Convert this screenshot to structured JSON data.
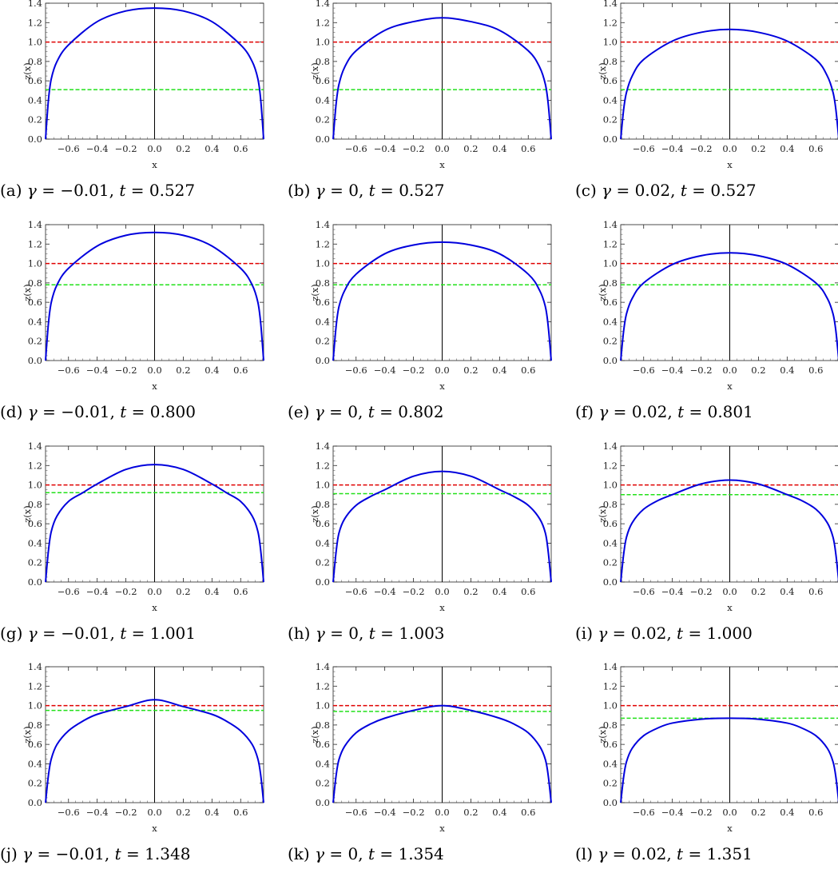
{
  "chart_data": [
    {
      "type": "line",
      "caption": {
        "tag": "(a)",
        "gamma": "-0.01",
        "t": "0.527"
      },
      "xlabel": "x",
      "ylabel": "z(x)",
      "xlim": [
        -0.76,
        0.76
      ],
      "ylim": [
        0,
        1.4
      ],
      "x_ticks": [
        -0.6,
        -0.4,
        -0.2,
        0.0,
        0.2,
        0.4,
        0.6
      ],
      "y_ticks": [
        0.0,
        0.2,
        0.4,
        0.6,
        0.8,
        1.0,
        1.2,
        1.4
      ],
      "reference_lines": [
        {
          "y": 1.0,
          "color": "#e00000"
        },
        {
          "y": 0.51,
          "color": "#22e01a"
        }
      ],
      "series": [
        {
          "color": "#0000dd",
          "x": [
            -0.76,
            -0.74,
            -0.72,
            -0.68,
            -0.6,
            -0.4,
            -0.2,
            0.0,
            0.2,
            0.4,
            0.6,
            0.68,
            0.72,
            0.74,
            0.76
          ],
          "y": [
            0.0,
            0.4,
            0.62,
            0.8,
            0.97,
            1.21,
            1.32,
            1.35,
            1.32,
            1.21,
            0.97,
            0.8,
            0.62,
            0.4,
            0.0
          ]
        }
      ]
    },
    {
      "type": "line",
      "caption": {
        "tag": "(b)",
        "gamma": "0",
        "t": "0.527"
      },
      "xlabel": "x",
      "ylabel": "z(x)",
      "xlim": [
        -0.76,
        0.76
      ],
      "ylim": [
        0,
        1.4
      ],
      "x_ticks": [
        -0.6,
        -0.4,
        -0.2,
        0.0,
        0.2,
        0.4,
        0.6
      ],
      "y_ticks": [
        0.0,
        0.2,
        0.4,
        0.6,
        0.8,
        1.0,
        1.2,
        1.4
      ],
      "reference_lines": [
        {
          "y": 1.0,
          "color": "#e00000"
        },
        {
          "y": 0.51,
          "color": "#22e01a"
        }
      ],
      "series": [
        {
          "color": "#0000dd",
          "x": [
            -0.76,
            -0.74,
            -0.72,
            -0.68,
            -0.6,
            -0.4,
            -0.2,
            0.0,
            0.2,
            0.4,
            0.6,
            0.68,
            0.72,
            0.74,
            0.76
          ],
          "y": [
            0.0,
            0.35,
            0.56,
            0.74,
            0.91,
            1.12,
            1.21,
            1.25,
            1.21,
            1.12,
            0.91,
            0.74,
            0.56,
            0.35,
            0.0
          ]
        }
      ]
    },
    {
      "type": "line",
      "caption": {
        "tag": "(c)",
        "gamma": "0.02",
        "t": "0.527"
      },
      "xlabel": "x",
      "ylabel": "z(x)",
      "xlim": [
        -0.76,
        0.76
      ],
      "ylim": [
        0,
        1.4
      ],
      "x_ticks": [
        -0.6,
        -0.4,
        -0.2,
        0.0,
        0.2,
        0.4,
        0.6
      ],
      "y_ticks": [
        0.0,
        0.2,
        0.4,
        0.6,
        0.8,
        1.0,
        1.2,
        1.4
      ],
      "reference_lines": [
        {
          "y": 1.0,
          "color": "#e00000"
        },
        {
          "y": 0.51,
          "color": "#22e01a"
        }
      ],
      "series": [
        {
          "color": "#0000dd",
          "x": [
            -0.76,
            -0.74,
            -0.72,
            -0.68,
            -0.6,
            -0.4,
            -0.2,
            0.0,
            0.2,
            0.4,
            0.6,
            0.68,
            0.72,
            0.74,
            0.76
          ],
          "y": [
            0.0,
            0.3,
            0.48,
            0.65,
            0.82,
            1.01,
            1.1,
            1.13,
            1.1,
            1.01,
            0.82,
            0.65,
            0.48,
            0.3,
            0.0
          ]
        }
      ]
    },
    {
      "type": "line",
      "caption": {
        "tag": "(d)",
        "gamma": "-0.01",
        "t": "0.800"
      },
      "xlabel": "x",
      "ylabel": "z(x)",
      "xlim": [
        -0.76,
        0.76
      ],
      "ylim": [
        0,
        1.4
      ],
      "x_ticks": [
        -0.6,
        -0.4,
        -0.2,
        0.0,
        0.2,
        0.4,
        0.6
      ],
      "y_ticks": [
        0.0,
        0.2,
        0.4,
        0.6,
        0.8,
        1.0,
        1.2,
        1.4
      ],
      "reference_lines": [
        {
          "y": 1.0,
          "color": "#e00000"
        },
        {
          "y": 0.78,
          "color": "#22e01a"
        }
      ],
      "series": [
        {
          "color": "#0000dd",
          "x": [
            -0.76,
            -0.74,
            -0.72,
            -0.68,
            -0.6,
            -0.4,
            -0.2,
            0.0,
            0.2,
            0.4,
            0.6,
            0.68,
            0.72,
            0.74,
            0.76
          ],
          "y": [
            0.0,
            0.38,
            0.6,
            0.78,
            0.95,
            1.18,
            1.29,
            1.32,
            1.29,
            1.18,
            0.95,
            0.78,
            0.6,
            0.38,
            0.0
          ]
        }
      ]
    },
    {
      "type": "line",
      "caption": {
        "tag": "(e)",
        "gamma": "0",
        "t": "0.802"
      },
      "xlabel": "x",
      "ylabel": "z(x)",
      "xlim": [
        -0.76,
        0.76
      ],
      "ylim": [
        0,
        1.4
      ],
      "x_ticks": [
        -0.6,
        -0.4,
        -0.2,
        0.0,
        0.2,
        0.4,
        0.6
      ],
      "y_ticks": [
        0.0,
        0.2,
        0.4,
        0.6,
        0.8,
        1.0,
        1.2,
        1.4
      ],
      "reference_lines": [
        {
          "y": 1.0,
          "color": "#e00000"
        },
        {
          "y": 0.78,
          "color": "#22e01a"
        }
      ],
      "series": [
        {
          "color": "#0000dd",
          "x": [
            -0.76,
            -0.74,
            -0.72,
            -0.68,
            -0.6,
            -0.4,
            -0.2,
            0.0,
            0.2,
            0.4,
            0.6,
            0.68,
            0.72,
            0.74,
            0.76
          ],
          "y": [
            0.0,
            0.34,
            0.55,
            0.72,
            0.89,
            1.1,
            1.19,
            1.22,
            1.19,
            1.1,
            0.89,
            0.72,
            0.55,
            0.34,
            0.0
          ]
        }
      ]
    },
    {
      "type": "line",
      "caption": {
        "tag": "(f)",
        "gamma": "0.02",
        "t": "0.801"
      },
      "xlabel": "x",
      "ylabel": "z(x)",
      "xlim": [
        -0.76,
        0.76
      ],
      "ylim": [
        0,
        1.4
      ],
      "x_ticks": [
        -0.6,
        -0.4,
        -0.2,
        0.0,
        0.2,
        0.4,
        0.6
      ],
      "y_ticks": [
        0.0,
        0.2,
        0.4,
        0.6,
        0.8,
        1.0,
        1.2,
        1.4
      ],
      "reference_lines": [
        {
          "y": 1.0,
          "color": "#e00000"
        },
        {
          "y": 0.78,
          "color": "#22e01a"
        }
      ],
      "series": [
        {
          "color": "#0000dd",
          "x": [
            -0.76,
            -0.74,
            -0.72,
            -0.68,
            -0.6,
            -0.4,
            -0.2,
            0.0,
            0.2,
            0.4,
            0.6,
            0.68,
            0.72,
            0.74,
            0.76
          ],
          "y": [
            0.0,
            0.3,
            0.48,
            0.64,
            0.8,
            0.99,
            1.08,
            1.11,
            1.08,
            0.99,
            0.8,
            0.64,
            0.48,
            0.3,
            0.0
          ]
        }
      ]
    },
    {
      "type": "line",
      "caption": {
        "tag": "(g)",
        "gamma": "-0.01",
        "t": "1.001"
      },
      "xlabel": "x",
      "ylabel": "z(x)",
      "xlim": [
        -0.76,
        0.76
      ],
      "ylim": [
        0,
        1.4
      ],
      "x_ticks": [
        -0.6,
        -0.4,
        -0.2,
        0.0,
        0.2,
        0.4,
        0.6
      ],
      "y_ticks": [
        0.0,
        0.2,
        0.4,
        0.6,
        0.8,
        1.0,
        1.2,
        1.4
      ],
      "reference_lines": [
        {
          "y": 1.0,
          "color": "#e00000"
        },
        {
          "y": 0.92,
          "color": "#22e01a"
        }
      ],
      "series": [
        {
          "color": "#0000dd",
          "x": [
            -0.76,
            -0.74,
            -0.72,
            -0.68,
            -0.6,
            -0.5,
            -0.4,
            -0.2,
            0.0,
            0.2,
            0.4,
            0.5,
            0.6,
            0.68,
            0.72,
            0.74,
            0.76
          ],
          "y": [
            0.0,
            0.32,
            0.52,
            0.68,
            0.83,
            0.92,
            1.01,
            1.16,
            1.21,
            1.16,
            1.01,
            0.92,
            0.83,
            0.68,
            0.52,
            0.32,
            0.0
          ]
        }
      ]
    },
    {
      "type": "line",
      "caption": {
        "tag": "(h)",
        "gamma": "0",
        "t": "1.003"
      },
      "xlabel": "x",
      "ylabel": "z(x)",
      "xlim": [
        -0.76,
        0.76
      ],
      "ylim": [
        0,
        1.4
      ],
      "x_ticks": [
        -0.6,
        -0.4,
        -0.2,
        0.0,
        0.2,
        0.4,
        0.6
      ],
      "y_ticks": [
        0.0,
        0.2,
        0.4,
        0.6,
        0.8,
        1.0,
        1.2,
        1.4
      ],
      "reference_lines": [
        {
          "y": 1.0,
          "color": "#e00000"
        },
        {
          "y": 0.91,
          "color": "#22e01a"
        }
      ],
      "series": [
        {
          "color": "#0000dd",
          "x": [
            -0.76,
            -0.74,
            -0.72,
            -0.68,
            -0.6,
            -0.5,
            -0.4,
            -0.2,
            0.0,
            0.2,
            0.4,
            0.5,
            0.6,
            0.68,
            0.72,
            0.74,
            0.76
          ],
          "y": [
            0.0,
            0.3,
            0.5,
            0.65,
            0.79,
            0.88,
            0.95,
            1.09,
            1.14,
            1.09,
            0.95,
            0.88,
            0.79,
            0.65,
            0.5,
            0.3,
            0.0
          ]
        }
      ]
    },
    {
      "type": "line",
      "caption": {
        "tag": "(i)",
        "gamma": "0.02",
        "t": "1.000"
      },
      "xlabel": "x",
      "ylabel": "z(x)",
      "xlim": [
        -0.76,
        0.76
      ],
      "ylim": [
        0,
        1.4
      ],
      "x_ticks": [
        -0.6,
        -0.4,
        -0.2,
        0.0,
        0.2,
        0.4,
        0.6
      ],
      "y_ticks": [
        0.0,
        0.2,
        0.4,
        0.6,
        0.8,
        1.0,
        1.2,
        1.4
      ],
      "reference_lines": [
        {
          "y": 1.0,
          "color": "#e00000"
        },
        {
          "y": 0.9,
          "color": "#22e01a"
        }
      ],
      "series": [
        {
          "color": "#0000dd",
          "x": [
            -0.76,
            -0.74,
            -0.72,
            -0.68,
            -0.6,
            -0.5,
            -0.4,
            -0.2,
            0.0,
            0.2,
            0.4,
            0.5,
            0.6,
            0.68,
            0.72,
            0.74,
            0.76
          ],
          "y": [
            0.0,
            0.28,
            0.46,
            0.61,
            0.75,
            0.84,
            0.9,
            1.01,
            1.05,
            1.01,
            0.9,
            0.84,
            0.75,
            0.61,
            0.46,
            0.28,
            0.0
          ]
        }
      ]
    },
    {
      "type": "line",
      "caption": {
        "tag": "(j)",
        "gamma": "-0.01",
        "t": "1.348"
      },
      "xlabel": "x",
      "ylabel": "z(x)",
      "xlim": [
        -0.76,
        0.76
      ],
      "ylim": [
        0,
        1.4
      ],
      "x_ticks": [
        -0.6,
        -0.4,
        -0.2,
        0.0,
        0.2,
        0.4,
        0.6
      ],
      "y_ticks": [
        0.0,
        0.2,
        0.4,
        0.6,
        0.8,
        1.0,
        1.2,
        1.4
      ],
      "reference_lines": [
        {
          "y": 1.0,
          "color": "#e00000"
        },
        {
          "y": 0.95,
          "color": "#22e01a"
        }
      ],
      "series": [
        {
          "color": "#0000dd",
          "x": [
            -0.76,
            -0.74,
            -0.72,
            -0.68,
            -0.6,
            -0.5,
            -0.4,
            -0.2,
            0.0,
            0.2,
            0.4,
            0.5,
            0.6,
            0.68,
            0.72,
            0.74,
            0.76
          ],
          "y": [
            0.0,
            0.28,
            0.45,
            0.6,
            0.74,
            0.84,
            0.91,
            0.99,
            1.06,
            0.99,
            0.91,
            0.84,
            0.74,
            0.6,
            0.45,
            0.28,
            0.0
          ]
        }
      ]
    },
    {
      "type": "line",
      "caption": {
        "tag": "(k)",
        "gamma": "0",
        "t": "1.354"
      },
      "xlabel": "x",
      "ylabel": "z(x)",
      "xlim": [
        -0.76,
        0.76
      ],
      "ylim": [
        0,
        1.4
      ],
      "x_ticks": [
        -0.6,
        -0.4,
        -0.2,
        0.0,
        0.2,
        0.4,
        0.6
      ],
      "y_ticks": [
        0.0,
        0.2,
        0.4,
        0.6,
        0.8,
        1.0,
        1.2,
        1.4
      ],
      "reference_lines": [
        {
          "y": 1.0,
          "color": "#e00000"
        },
        {
          "y": 0.94,
          "color": "#22e01a"
        }
      ],
      "series": [
        {
          "color": "#0000dd",
          "x": [
            -0.76,
            -0.74,
            -0.72,
            -0.68,
            -0.6,
            -0.5,
            -0.4,
            -0.2,
            0.0,
            0.2,
            0.4,
            0.5,
            0.6,
            0.68,
            0.72,
            0.74,
            0.76
          ],
          "y": [
            0.0,
            0.27,
            0.44,
            0.58,
            0.72,
            0.81,
            0.87,
            0.95,
            1.0,
            0.95,
            0.87,
            0.81,
            0.72,
            0.58,
            0.44,
            0.27,
            0.0
          ]
        }
      ]
    },
    {
      "type": "line",
      "caption": {
        "tag": "(l)",
        "gamma": "0.02",
        "t": "1.351"
      },
      "xlabel": "x",
      "ylabel": "z(x)",
      "xlim": [
        -0.76,
        0.76
      ],
      "ylim": [
        0,
        1.4
      ],
      "x_ticks": [
        -0.6,
        -0.4,
        -0.2,
        0.0,
        0.2,
        0.4,
        0.6
      ],
      "y_ticks": [
        0.0,
        0.2,
        0.4,
        0.6,
        0.8,
        1.0,
        1.2,
        1.4
      ],
      "reference_lines": [
        {
          "y": 1.0,
          "color": "#e00000"
        },
        {
          "y": 0.87,
          "color": "#22e01a"
        }
      ],
      "series": [
        {
          "color": "#0000dd",
          "x": [
            -0.76,
            -0.74,
            -0.72,
            -0.68,
            -0.6,
            -0.5,
            -0.4,
            -0.2,
            0.0,
            0.2,
            0.4,
            0.5,
            0.6,
            0.68,
            0.72,
            0.74,
            0.76
          ],
          "y": [
            0.0,
            0.26,
            0.42,
            0.56,
            0.69,
            0.77,
            0.82,
            0.86,
            0.87,
            0.86,
            0.82,
            0.77,
            0.69,
            0.56,
            0.42,
            0.26,
            0.0
          ]
        }
      ]
    }
  ]
}
